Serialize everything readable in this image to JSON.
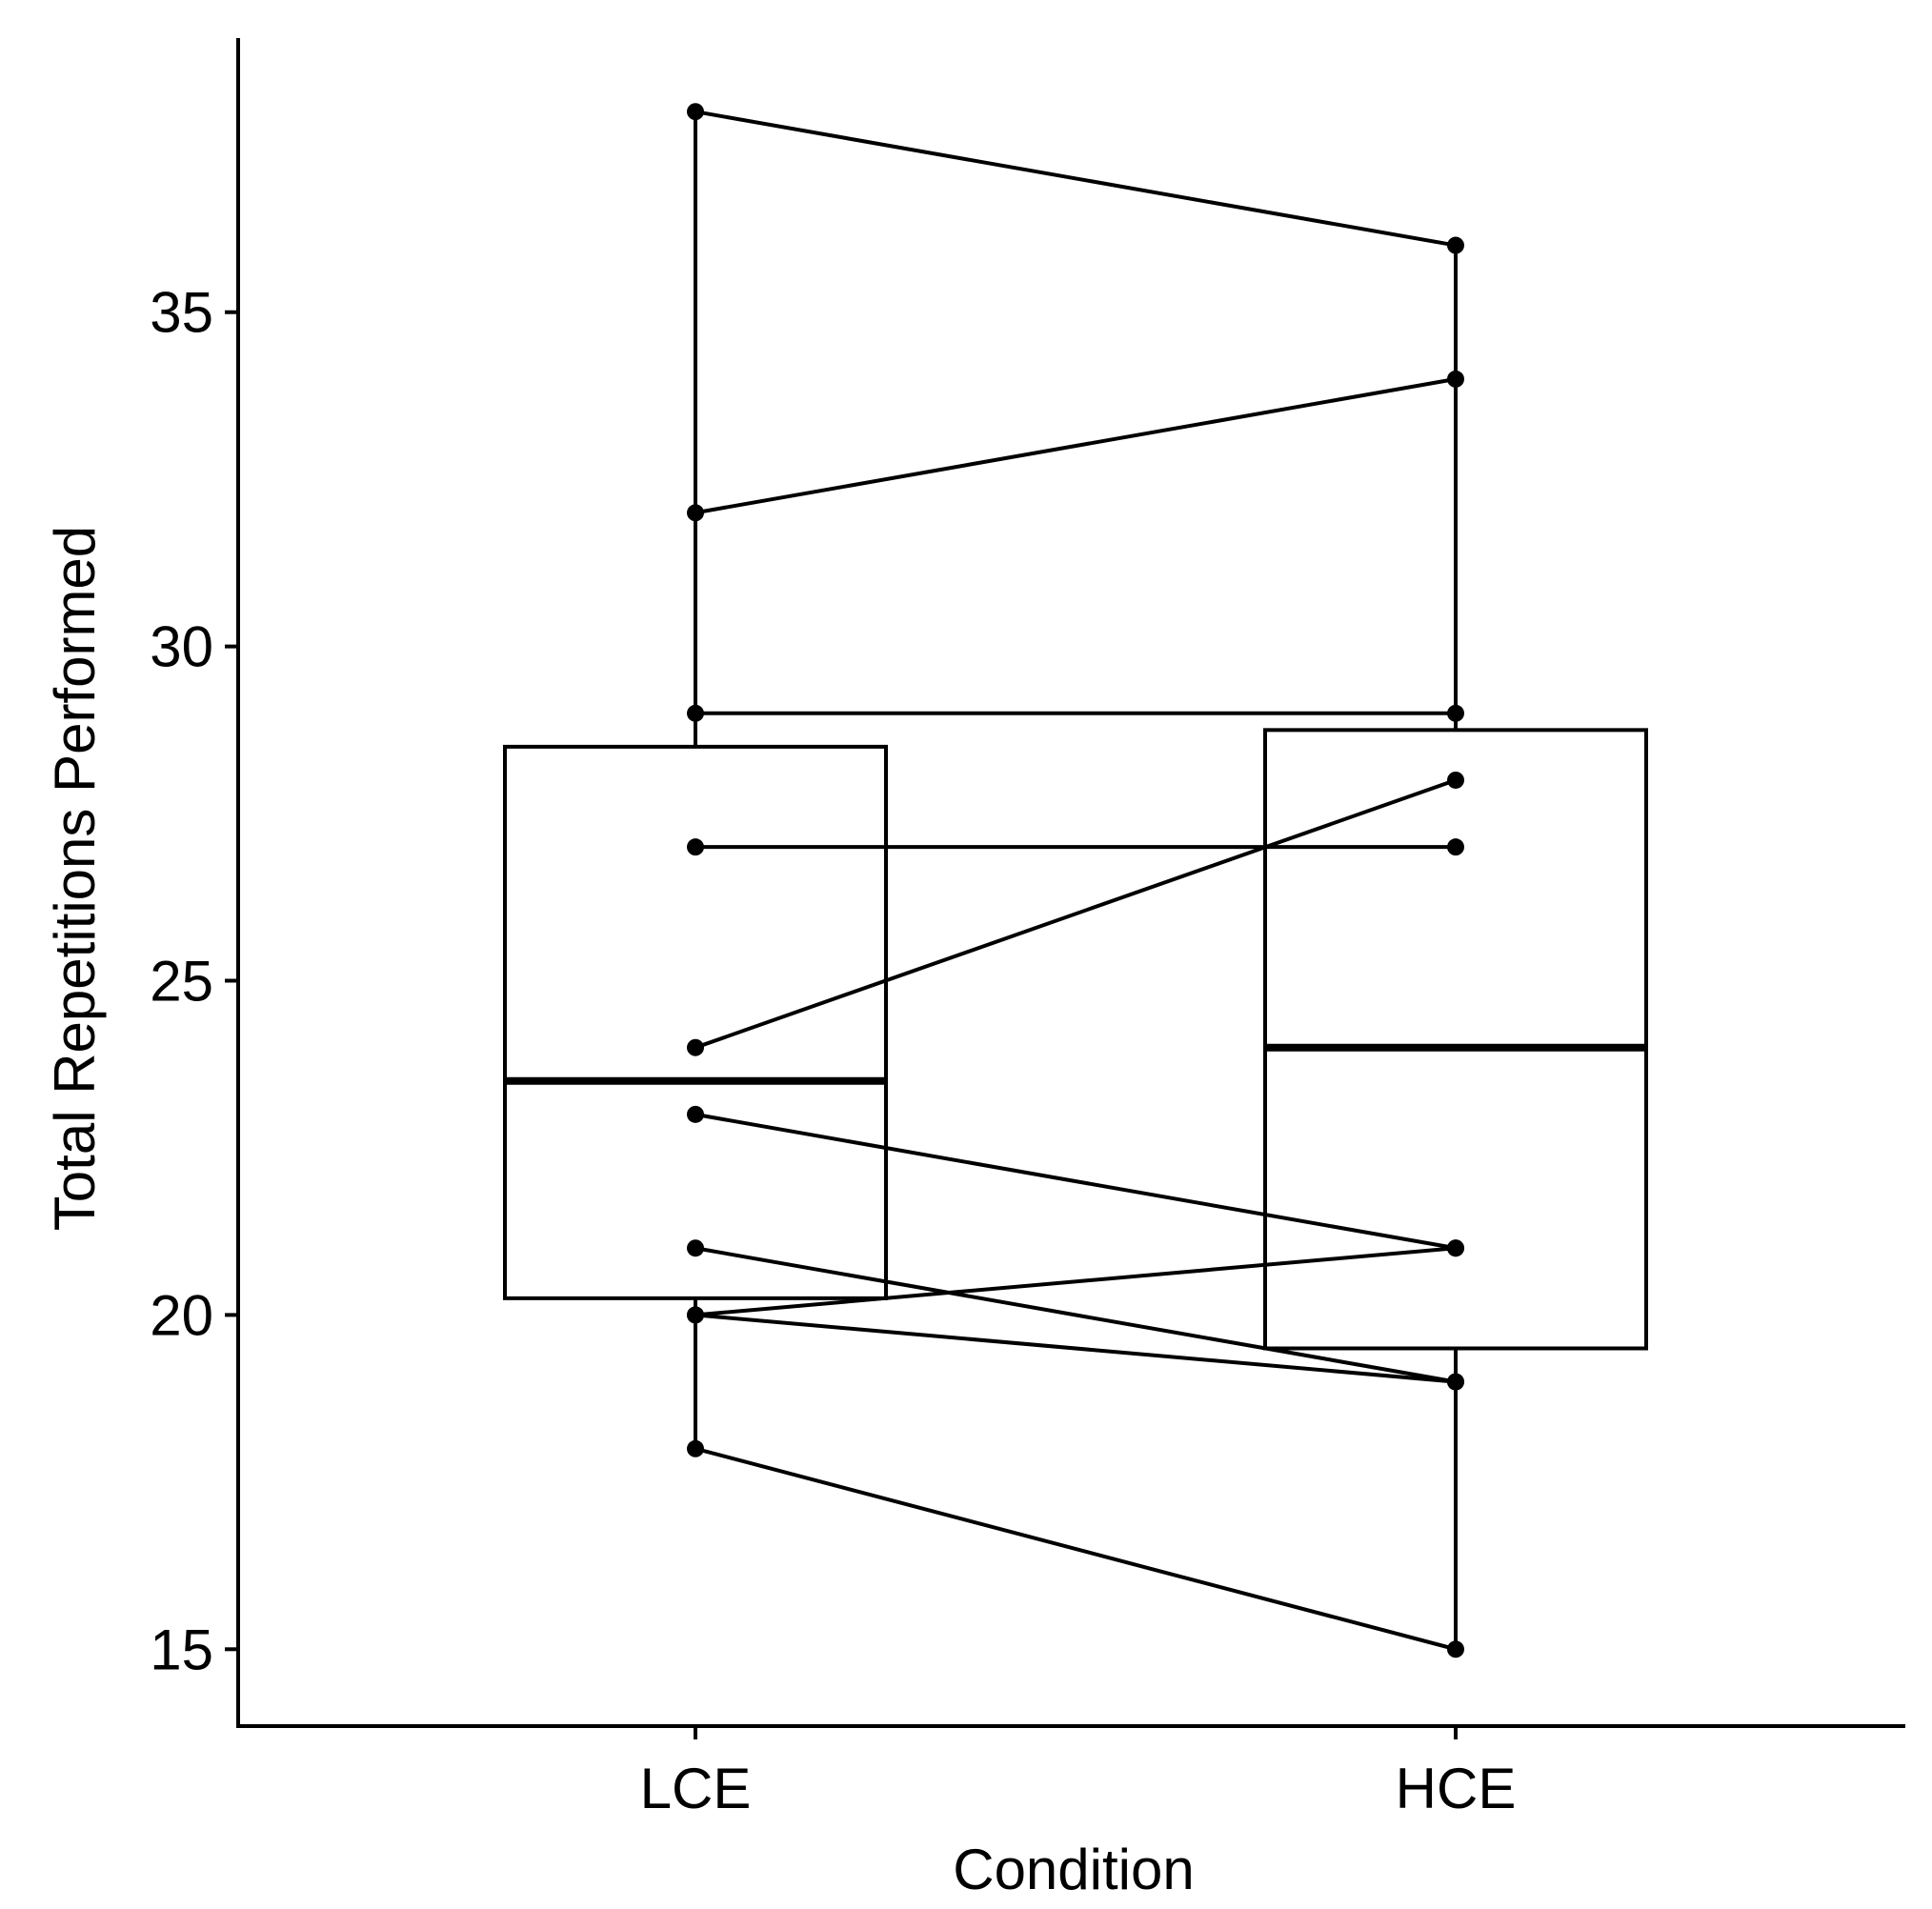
{
  "chart_data": {
    "type": "box",
    "title": "",
    "xlabel": "Condition",
    "ylabel": "Total Repetitions Performed",
    "categories": [
      "LCE",
      "HCE"
    ],
    "ylim": [
      13.85,
      39.1
    ],
    "yticks": [
      15,
      20,
      25,
      30,
      35
    ],
    "grid": false,
    "boxes": [
      {
        "category": "LCE",
        "q1": 20.25,
        "median": 23.5,
        "q3": 28.5,
        "whisker_low": 18,
        "whisker_high": 38
      },
      {
        "category": "HCE",
        "q1": 19.5,
        "median": 24,
        "q3": 28.75,
        "whisker_low": 15,
        "whisker_high": 36
      }
    ],
    "pairs": [
      {
        "LCE": 38,
        "HCE": 36
      },
      {
        "LCE": 32,
        "HCE": 34
      },
      {
        "LCE": 29,
        "HCE": 29
      },
      {
        "LCE": 27,
        "HCE": 27
      },
      {
        "LCE": 24,
        "HCE": 28
      },
      {
        "LCE": 23,
        "HCE": 21
      },
      {
        "LCE": 21,
        "HCE": 19
      },
      {
        "LCE": 20,
        "HCE": 21
      },
      {
        "LCE": 20,
        "HCE": 19
      },
      {
        "LCE": 18,
        "HCE": 15
      }
    ],
    "colors": {
      "stroke": "#000000",
      "background": "#ffffff"
    }
  }
}
